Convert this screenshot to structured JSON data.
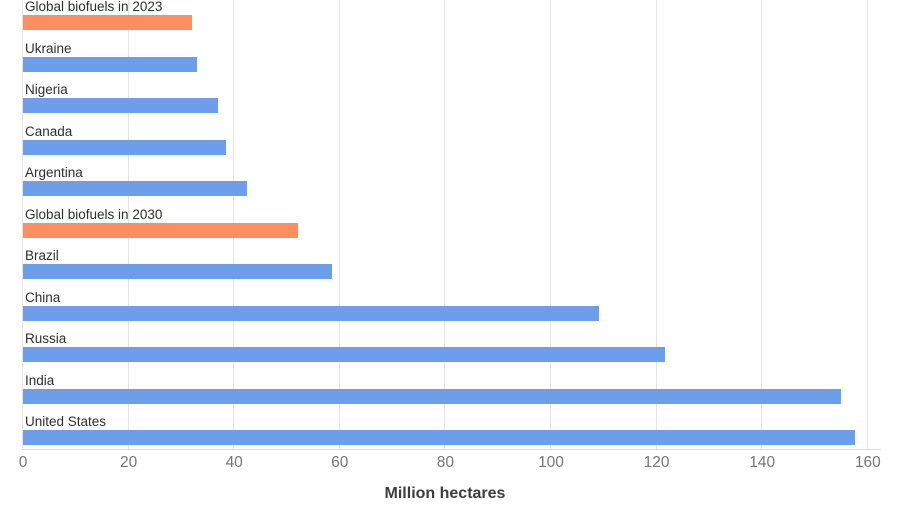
{
  "chart_data": {
    "type": "bar",
    "orientation": "horizontal",
    "title": "",
    "xlabel": "Million hectares",
    "ylabel": "",
    "xlim": [
      0,
      160
    ],
    "xticks": [
      0,
      20,
      40,
      60,
      80,
      100,
      120,
      140,
      160
    ],
    "grid": true,
    "legend": "none",
    "categories": [
      "Global biofuels in 2023",
      "Ukraine",
      "Nigeria",
      "Canada",
      "Argentina",
      "Global biofuels in 2030",
      "Brazil",
      "China",
      "Russia",
      "India",
      "United States"
    ],
    "values": [
      32,
      33,
      37,
      38.5,
      42.5,
      52,
      58.5,
      109,
      121.5,
      155,
      157.5
    ],
    "bar_color_keys": [
      "highlight",
      "default",
      "default",
      "default",
      "default",
      "highlight",
      "default",
      "default",
      "default",
      "default",
      "default"
    ],
    "colors": {
      "default": "#6D9EEB",
      "highlight": "#FC8E61"
    },
    "axis_colors": {
      "gridline": "#e4e4e4",
      "axis_line": "#dcdcdc",
      "tick_text": "#767676",
      "label_text": "#2f2f2f",
      "axis_title_text": "#3d3d3d"
    }
  }
}
